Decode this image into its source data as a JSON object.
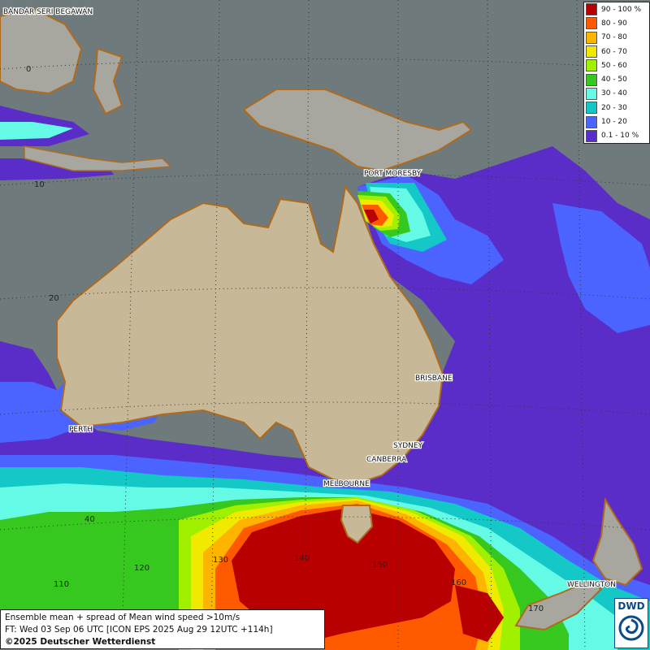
{
  "title": "Ensemble mean + spread of Mean wind speed >10m/s",
  "forecast_line": "FT: Wed 03 Sep 06 UTC [ICON EPS 2025 Aug 29 12UTC +114h]",
  "copyright": "©2025 Deutscher Wetterdienst",
  "logo": {
    "text": "DWD",
    "icon": "dwd-swirl-icon"
  },
  "legend": [
    {
      "label": "90 - 100 %",
      "color": "#b80000"
    },
    {
      "label": "80 - 90",
      "color": "#ff5a00"
    },
    {
      "label": "70 - 80",
      "color": "#ffb400"
    },
    {
      "label": "60 - 70",
      "color": "#f0ea00"
    },
    {
      "label": "50 - 60",
      "color": "#a0f000"
    },
    {
      "label": "40 - 50",
      "color": "#36c81e"
    },
    {
      "label": "30 - 40",
      "color": "#64fae6"
    },
    {
      "label": "20 - 30",
      "color": "#14c8c8"
    },
    {
      "label": "10 - 20",
      "color": "#4b64ff"
    },
    {
      "label": "0.1 - 10 %",
      "color": "#5a2dc8"
    }
  ],
  "cities": {
    "bandar": "BANDAR SERI BEGAWAN",
    "port_moresby": "PORT MORESBY",
    "brisbane": "BRISBANE",
    "perth": "PERTH",
    "sydney": "SYDNEY",
    "canberra": "CANBERRA",
    "melbourne": "MELBOURNE",
    "wellington": "WELLINGTON"
  },
  "grid_labels": {
    "lat0": "0",
    "lat10": "10",
    "lat20": "20",
    "lat40": "40",
    "lon110": "110",
    "lon120": "120",
    "lon130": "130",
    "lon140": "140",
    "lon150": "150",
    "lon160": "160",
    "lon170": "170"
  },
  "colors": {
    "sea": "#6f7a7c",
    "land": "#c7b898",
    "coast": "#b06a1e"
  }
}
